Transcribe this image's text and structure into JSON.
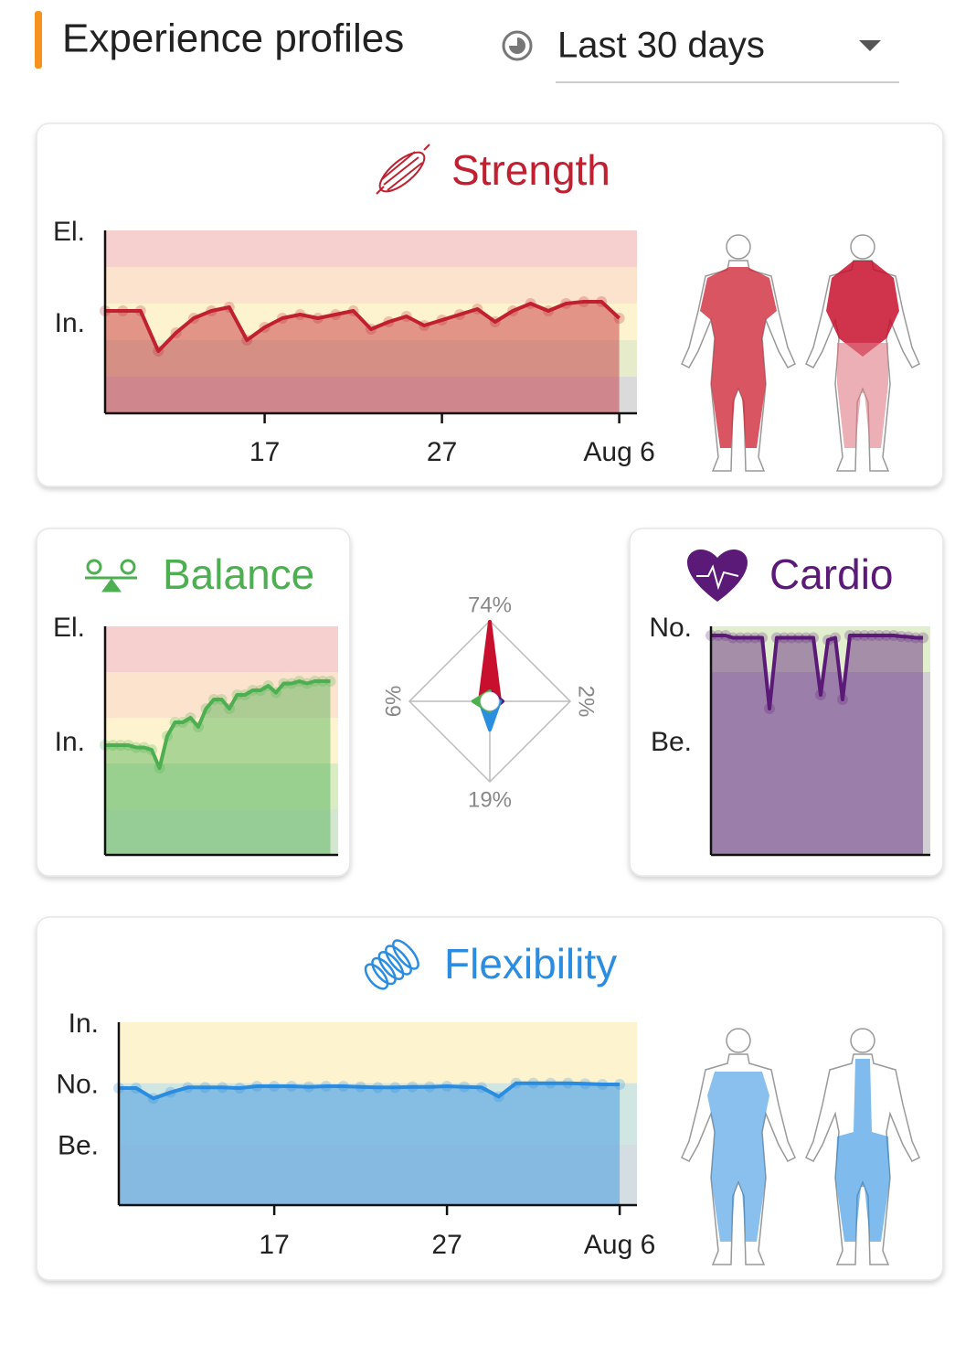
{
  "header": {
    "title": "Experience profiles",
    "period": "Last 30 days"
  },
  "chart_data": [
    {
      "type": "line",
      "title": "Strength",
      "color": "#c0202f",
      "bands": [
        "#f6cfcf",
        "#fbe3cd",
        "#fdf4cf",
        "#e5ebcb",
        "#dadada"
      ],
      "x": [
        "Jul 8",
        "Jul 9",
        "Jul 10",
        "Jul 11",
        "Jul 12",
        "Jul 13",
        "Jul 14",
        "Jul 15",
        "Jul 16",
        "Jul 17",
        "Jul 18",
        "Jul 19",
        "Jul 20",
        "Jul 21",
        "Jul 22",
        "Jul 23",
        "Jul 24",
        "Jul 25",
        "Jul 26",
        "Jul 27",
        "Jul 28",
        "Jul 29",
        "Jul 30",
        "Jul 31",
        "Aug 1",
        "Aug 2",
        "Aug 3",
        "Aug 4",
        "Aug 5",
        "Aug 6"
      ],
      "values": [
        2.8,
        2.8,
        2.8,
        1.7,
        2.2,
        2.6,
        2.8,
        2.9,
        2.0,
        2.35,
        2.6,
        2.7,
        2.6,
        2.7,
        2.8,
        2.3,
        2.5,
        2.65,
        2.4,
        2.55,
        2.7,
        2.85,
        2.5,
        2.8,
        3.0,
        2.8,
        3.0,
        3.05,
        3.05,
        2.6
      ],
      "xlim": [
        "Jul 8",
        "Aug 7"
      ],
      "xticks": [
        {
          "value": "Jul 17",
          "label": "17"
        },
        {
          "value": "Jul 27",
          "label": "27"
        },
        {
          "value": "Aug 6",
          "label": "Aug 6"
        }
      ],
      "ylim": [
        0,
        5
      ],
      "yticks": [
        {
          "value": 5,
          "label": "El."
        },
        {
          "value": 2.5,
          "label": "In."
        }
      ]
    },
    {
      "type": "line",
      "title": "Balance",
      "color": "#4caf50",
      "bands": [
        "#f6cfcf",
        "#fbe3cd",
        "#fdf4cf",
        "#d9ecc4",
        "#d3e6cf"
      ],
      "x": [
        "Jul 8",
        "Jul 9",
        "Jul 10",
        "Jul 11",
        "Jul 12",
        "Jul 13",
        "Jul 14",
        "Jul 15",
        "Jul 16",
        "Jul 17",
        "Jul 18",
        "Jul 19",
        "Jul 20",
        "Jul 21",
        "Jul 22",
        "Jul 23",
        "Jul 24",
        "Jul 25",
        "Jul 26",
        "Jul 27",
        "Jul 28",
        "Jul 29",
        "Jul 30",
        "Jul 31",
        "Aug 1",
        "Aug 2",
        "Aug 3",
        "Aug 4",
        "Aug 5",
        "Aug 6"
      ],
      "values": [
        2.4,
        2.4,
        2.4,
        2.4,
        2.35,
        2.35,
        2.3,
        1.9,
        2.6,
        2.9,
        2.9,
        3.0,
        2.8,
        3.2,
        3.4,
        3.4,
        3.2,
        3.5,
        3.5,
        3.6,
        3.6,
        3.7,
        3.55,
        3.75,
        3.75,
        3.8,
        3.75,
        3.8,
        3.8,
        3.8
      ],
      "xlim": [
        "Jul 8",
        "Aug 7"
      ],
      "ylim": [
        0,
        5
      ],
      "yticks": [
        {
          "value": 5,
          "label": "El."
        },
        {
          "value": 2.5,
          "label": "In."
        }
      ]
    },
    {
      "type": "radar",
      "values": [
        74,
        2,
        19,
        6
      ],
      "value_labels": [
        "74%",
        "2%",
        "19%",
        "6%"
      ],
      "colors": [
        "#c8102e",
        "#5b1a78",
        "#2b8fe0",
        "#4caf50"
      ],
      "rlim": [
        0,
        75
      ]
    },
    {
      "type": "line",
      "title": "Cardio",
      "color": "#5b1a78",
      "bands": [
        "#e2efcf",
        "#d2d0d4",
        "#d2d0d4",
        "#d2d0d4",
        "#d2d0d4"
      ],
      "x": [
        "Jul 8",
        "Jul 9",
        "Jul 10",
        "Jul 11",
        "Jul 12",
        "Jul 13",
        "Jul 14",
        "Jul 15",
        "Jul 16",
        "Jul 17",
        "Jul 18",
        "Jul 19",
        "Jul 20",
        "Jul 21",
        "Jul 22",
        "Jul 23",
        "Jul 24",
        "Jul 25",
        "Jul 26",
        "Jul 27",
        "Jul 28",
        "Jul 29",
        "Jul 30",
        "Jul 31",
        "Aug 1",
        "Aug 2",
        "Aug 3",
        "Aug 4",
        "Aug 5",
        "Aug 6"
      ],
      "values": [
        4.8,
        4.8,
        4.8,
        4.75,
        4.75,
        4.75,
        4.75,
        4.75,
        3.2,
        4.75,
        4.75,
        4.75,
        4.75,
        4.75,
        4.75,
        3.5,
        4.7,
        4.75,
        3.4,
        4.8,
        4.8,
        4.8,
        4.8,
        4.8,
        4.8,
        4.8,
        4.78,
        4.77,
        4.75,
        4.75
      ],
      "xlim": [
        "Jul 8",
        "Aug 7"
      ],
      "ylim": [
        0,
        5
      ],
      "yticks": [
        {
          "value": 5,
          "label": "No."
        },
        {
          "value": 2.5,
          "label": "Be."
        }
      ]
    },
    {
      "type": "line",
      "title": "Flexibility",
      "color": "#2a8de0",
      "bands": [
        "#fdf4cf",
        "#cfe6e3",
        "#d4dee2"
      ],
      "x": [
        "Jul 8",
        "Jul 9",
        "Jul 10",
        "Jul 11",
        "Jul 12",
        "Jul 13",
        "Jul 14",
        "Jul 15",
        "Jul 16",
        "Jul 17",
        "Jul 18",
        "Jul 19",
        "Jul 20",
        "Jul 21",
        "Jul 22",
        "Jul 23",
        "Jul 24",
        "Jul 25",
        "Jul 26",
        "Jul 27",
        "Jul 28",
        "Jul 29",
        "Jul 30",
        "Jul 31",
        "Aug 1",
        "Aug 2",
        "Aug 3",
        "Aug 4",
        "Aug 5",
        "Aug 6"
      ],
      "values": [
        1.92,
        1.92,
        1.75,
        1.85,
        1.93,
        1.93,
        1.93,
        1.92,
        1.95,
        1.95,
        1.95,
        1.94,
        1.95,
        1.95,
        1.94,
        1.93,
        1.93,
        1.94,
        1.94,
        1.95,
        1.94,
        1.93,
        1.78,
        2.0,
        2.0,
        2.0,
        2.0,
        1.99,
        1.98,
        1.98
      ],
      "xlim": [
        "Jul 8",
        "Aug 7"
      ],
      "xticks": [
        {
          "value": "Jul 17",
          "label": "17"
        },
        {
          "value": "Jul 27",
          "label": "27"
        },
        {
          "value": "Aug 6",
          "label": "Aug 6"
        }
      ],
      "ylim": [
        0,
        3
      ],
      "yticks": [
        {
          "value": 3,
          "label": "In."
        },
        {
          "value": 2,
          "label": "No."
        },
        {
          "value": 1,
          "label": "Be."
        }
      ]
    }
  ]
}
